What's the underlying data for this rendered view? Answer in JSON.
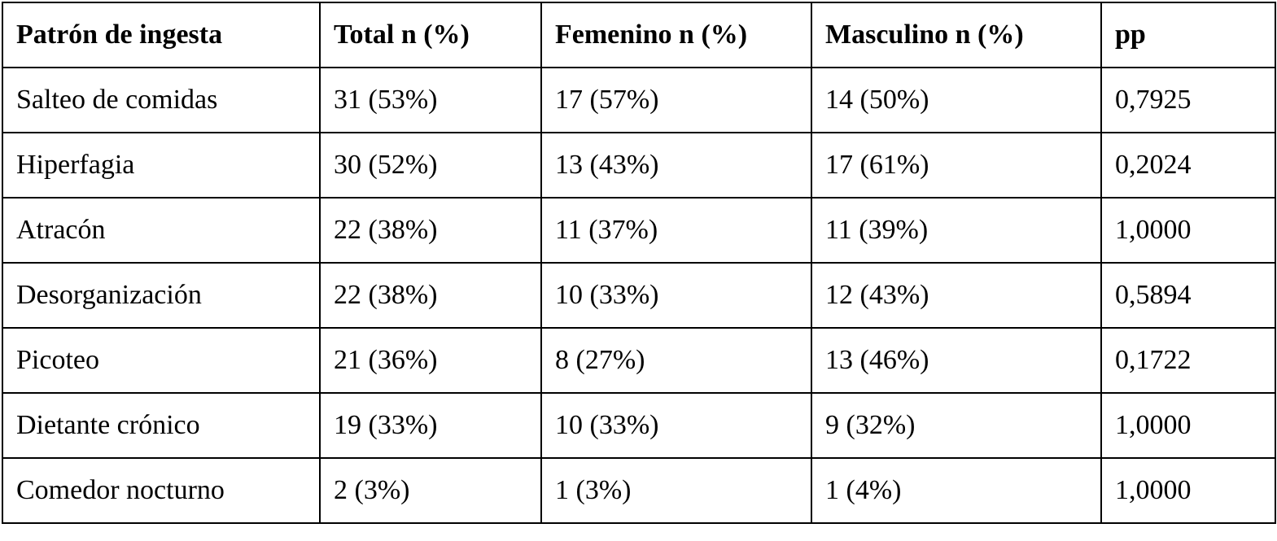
{
  "table": {
    "header": [
      "Patrón de ingesta",
      "Total n (%)",
      "Femenino n (%)",
      "Masculino n (%)",
      "pp"
    ],
    "rows": [
      [
        "Salteo de comidas",
        "31 (53%)",
        "17 (57%)",
        "14 (50%)",
        "0,7925"
      ],
      [
        "Hiperfagia",
        "30 (52%)",
        "13 (43%)",
        "17 (61%)",
        "0,2024"
      ],
      [
        "Atracón",
        "22 (38%)",
        "11 (37%)",
        "11 (39%)",
        "1,0000"
      ],
      [
        "Desorganización",
        "22 (38%)",
        "10 (33%)",
        "12 (43%)",
        "0,5894"
      ],
      [
        "Picoteo",
        "21 (36%)",
        "8 (27%)",
        "13 (46%)",
        "0,1722"
      ],
      [
        "Dietante crónico",
        "19 (33%)",
        "10 (33%)",
        "9 (32%)",
        "1,0000"
      ],
      [
        "Comedor nocturno",
        "2 (3%)",
        "1 (3%)",
        "1 (4%)",
        "1,0000"
      ]
    ]
  }
}
